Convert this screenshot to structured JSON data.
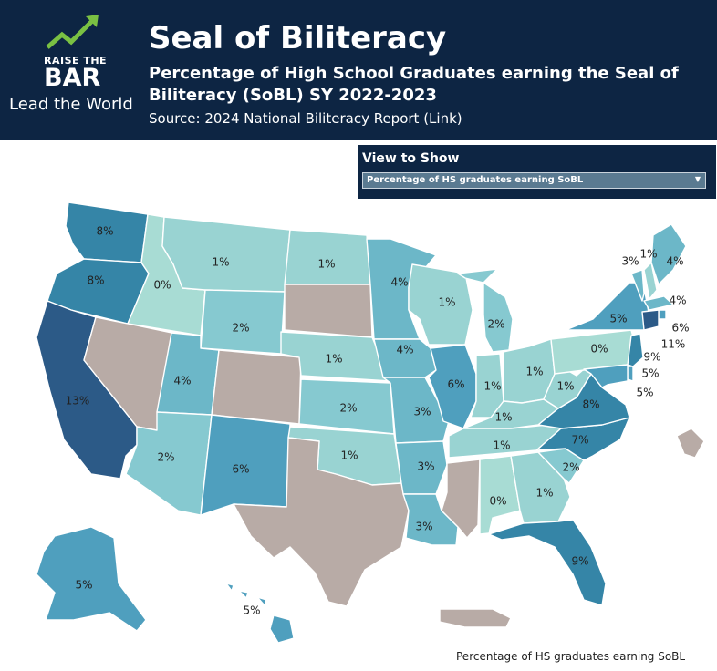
{
  "header": {
    "logo_line1": "RAISE THE",
    "logo_line2": "BAR",
    "tagline": "Lead the World",
    "title": "Seal of Biliteracy",
    "subtitle": "Percentage of High School Graduates earning the Seal of Biliteracy (SoBL) SY 2022-2023",
    "source": "Source: 2024 National Biliteracy Report (Link)"
  },
  "controls": {
    "view_label": "View to Show",
    "selected": "Percentage of HS graduates earning SoBL",
    "chevron_icon": "chevron-down-icon"
  },
  "map_note": "Percentage of HS graduates earning SoBL",
  "colors": {
    "header_bg": "#0d2543",
    "no_data": "#b8aba6",
    "scale": [
      "#a8dcd4",
      "#99d3d2",
      "#86c9d0",
      "#6cb7c8",
      "#4f9fbe",
      "#3585a7",
      "#2c5a87"
    ]
  },
  "states": [
    {
      "id": "WA",
      "label": "8%",
      "value": 8
    },
    {
      "id": "OR",
      "label": "8%",
      "value": 8
    },
    {
      "id": "CA",
      "label": "13%",
      "value": 13
    },
    {
      "id": "ID",
      "label": "0%",
      "value": 0
    },
    {
      "id": "NV",
      "label": "",
      "value": null
    },
    {
      "id": "MT",
      "label": "1%",
      "value": 1
    },
    {
      "id": "WY",
      "label": "2%",
      "value": 2
    },
    {
      "id": "UT",
      "label": "4%",
      "value": 4
    },
    {
      "id": "AZ",
      "label": "2%",
      "value": 2
    },
    {
      "id": "CO",
      "label": "",
      "value": null
    },
    {
      "id": "NM",
      "label": "6%",
      "value": 6
    },
    {
      "id": "ND",
      "label": "1%",
      "value": 1
    },
    {
      "id": "SD",
      "label": "",
      "value": null
    },
    {
      "id": "NE",
      "label": "1%",
      "value": 1
    },
    {
      "id": "KS",
      "label": "2%",
      "value": 2
    },
    {
      "id": "OK",
      "label": "1%",
      "value": 1
    },
    {
      "id": "TX",
      "label": "",
      "value": null
    },
    {
      "id": "MN",
      "label": "4%",
      "value": 4
    },
    {
      "id": "IA",
      "label": "4%",
      "value": 4
    },
    {
      "id": "MO",
      "label": "3%",
      "value": 3
    },
    {
      "id": "AR",
      "label": "3%",
      "value": 3
    },
    {
      "id": "LA",
      "label": "3%",
      "value": 3
    },
    {
      "id": "WI",
      "label": "1%",
      "value": 1
    },
    {
      "id": "IL",
      "label": "6%",
      "value": 6
    },
    {
      "id": "MI",
      "label": "2%",
      "value": 2
    },
    {
      "id": "IN",
      "label": "1%",
      "value": 1
    },
    {
      "id": "OH",
      "label": "1%",
      "value": 1
    },
    {
      "id": "KY",
      "label": "1%",
      "value": 1
    },
    {
      "id": "TN",
      "label": "1%",
      "value": 1
    },
    {
      "id": "MS",
      "label": "",
      "value": null
    },
    {
      "id": "AL",
      "label": "0%",
      "value": 0
    },
    {
      "id": "GA",
      "label": "1%",
      "value": 1
    },
    {
      "id": "FL",
      "label": "9%",
      "value": 9
    },
    {
      "id": "SC",
      "label": "2%",
      "value": 2
    },
    {
      "id": "NC",
      "label": "7%",
      "value": 7
    },
    {
      "id": "VA",
      "label": "8%",
      "value": 8
    },
    {
      "id": "WV",
      "label": "1%",
      "value": 1
    },
    {
      "id": "PA",
      "label": "0%",
      "value": 0
    },
    {
      "id": "NY",
      "label": "5%",
      "value": 5
    },
    {
      "id": "VT",
      "label": "3%",
      "value": 3
    },
    {
      "id": "NH",
      "label": "1%",
      "value": 1
    },
    {
      "id": "ME",
      "label": "4%",
      "value": 4
    },
    {
      "id": "MA",
      "label": "4%",
      "value": 4
    },
    {
      "id": "RI",
      "label": "6%",
      "value": 6
    },
    {
      "id": "CT",
      "label": "11%",
      "value": 11
    },
    {
      "id": "NJ",
      "label": "9%",
      "value": 9
    },
    {
      "id": "DE",
      "label": "5%",
      "value": 5
    },
    {
      "id": "MD",
      "label": "5%",
      "value": 5
    },
    {
      "id": "AK",
      "label": "5%",
      "value": 5
    },
    {
      "id": "HI",
      "label": "5%",
      "value": 5
    },
    {
      "id": "PR",
      "label": "",
      "value": null
    },
    {
      "id": "GU",
      "label": "",
      "value": null
    }
  ]
}
